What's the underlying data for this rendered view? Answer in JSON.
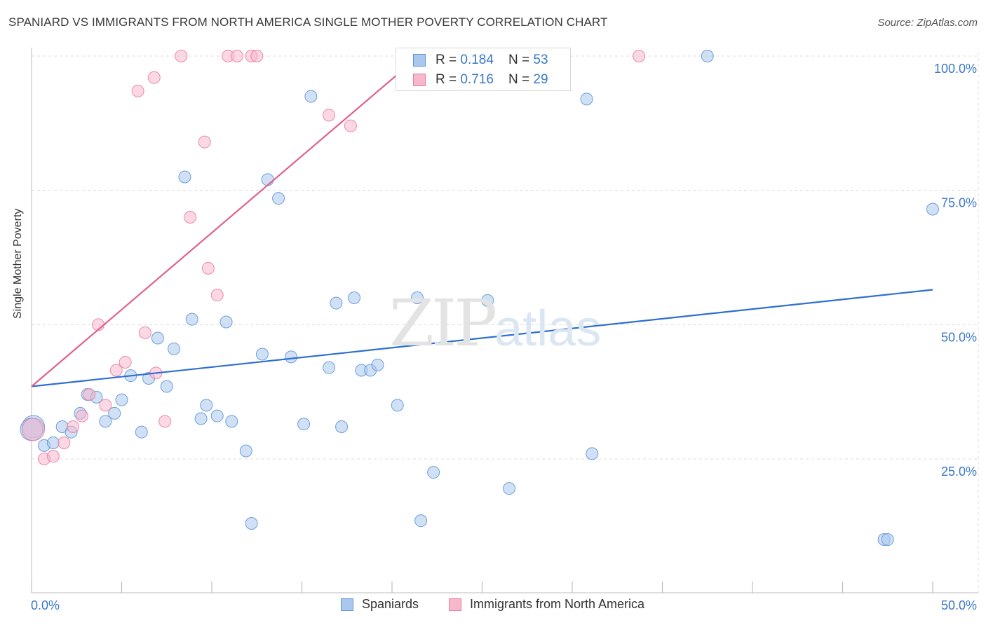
{
  "header": {
    "title": "SPANIARD VS IMMIGRANTS FROM NORTH AMERICA SINGLE MOTHER POVERTY CORRELATION CHART",
    "source": "Source: ZipAtlas.com"
  },
  "watermark": {
    "zip": "ZIP",
    "atlas": "atlas"
  },
  "legend_top": {
    "rows": [
      {
        "r_label": "R = ",
        "r_value": "0.184",
        "n_label": "N = ",
        "n_value": "53"
      },
      {
        "r_label": "R = ",
        "r_value": "0.716",
        "n_label": "N = ",
        "n_value": "29"
      }
    ]
  },
  "legend_bottom": {
    "items": [
      "Spaniards",
      "Immigrants from North America"
    ]
  },
  "chart_data": {
    "type": "scatter",
    "ylabel": "Single Mother Poverty",
    "xlabel": "",
    "x_tick_labels": [
      "0.0%",
      "50.0%"
    ],
    "y_tick_labels": [
      "100.0%",
      "75.0%",
      "50.0%",
      "25.0%"
    ],
    "xlim": [
      0,
      50
    ],
    "ylim": [
      0,
      101
    ],
    "y_ticks": [
      25,
      50,
      75,
      100
    ],
    "grid": "horizontal dashed",
    "legend_position": "top-center and bottom",
    "colors": {
      "blue_fill": "#aac8ee",
      "blue_stroke": "#5f95d8",
      "blue_line": "#2f6fd0",
      "pink_fill": "#f7b8cc",
      "pink_stroke": "#e77fa0",
      "pink_line": "#e0628a",
      "tick_text": "#3a78c9"
    },
    "series": [
      {
        "name": "Spaniards",
        "color": "blue",
        "points": [
          [
            0.1,
            31.0
          ],
          [
            0.7,
            27.5
          ],
          [
            1.2,
            28.0
          ],
          [
            1.7,
            31.0
          ],
          [
            2.2,
            30.0
          ],
          [
            2.7,
            33.5
          ],
          [
            3.1,
            37.0
          ],
          [
            3.6,
            36.5
          ],
          [
            4.1,
            32.0
          ],
          [
            4.6,
            33.5
          ],
          [
            5.0,
            36.0
          ],
          [
            5.5,
            40.5
          ],
          [
            6.1,
            30.0
          ],
          [
            6.5,
            40.0
          ],
          [
            7.0,
            47.5
          ],
          [
            7.5,
            38.5
          ],
          [
            7.9,
            45.5
          ],
          [
            8.5,
            77.5
          ],
          [
            8.9,
            51.0
          ],
          [
            9.4,
            32.5
          ],
          [
            9.7,
            35.0
          ],
          [
            10.3,
            33.0
          ],
          [
            10.8,
            50.5
          ],
          [
            11.1,
            32.0
          ],
          [
            11.9,
            26.5
          ],
          [
            12.2,
            13.0
          ],
          [
            12.8,
            44.5
          ],
          [
            13.1,
            77.0
          ],
          [
            13.7,
            73.5
          ],
          [
            14.4,
            44.0
          ],
          [
            15.1,
            31.5
          ],
          [
            15.5,
            92.5
          ],
          [
            16.5,
            42.0
          ],
          [
            16.9,
            54.0
          ],
          [
            17.2,
            31.0
          ],
          [
            17.9,
            55.0
          ],
          [
            18.3,
            41.5
          ],
          [
            18.8,
            41.5
          ],
          [
            19.2,
            42.5
          ],
          [
            20.3,
            35.0
          ],
          [
            21.4,
            55.0
          ],
          [
            21.6,
            13.5
          ],
          [
            22.3,
            22.5
          ],
          [
            23.2,
            100.0
          ],
          [
            25.3,
            54.5
          ],
          [
            26.5,
            19.5
          ],
          [
            30.8,
            92.0
          ],
          [
            31.1,
            26.0
          ],
          [
            37.5,
            100.0
          ],
          [
            47.3,
            10.0
          ],
          [
            47.5,
            10.0
          ],
          [
            50.0,
            71.5
          ],
          [
            0.0,
            30.5
          ]
        ]
      },
      {
        "name": "Immigrants from North America",
        "color": "pink",
        "points": [
          [
            0.1,
            30.5
          ],
          [
            0.7,
            25.0
          ],
          [
            1.2,
            25.5
          ],
          [
            1.8,
            28.0
          ],
          [
            2.3,
            31.0
          ],
          [
            2.8,
            33.0
          ],
          [
            3.2,
            37.0
          ],
          [
            3.7,
            50.0
          ],
          [
            4.1,
            35.0
          ],
          [
            4.7,
            41.5
          ],
          [
            5.2,
            43.0
          ],
          [
            5.9,
            93.5
          ],
          [
            6.3,
            48.5
          ],
          [
            6.8,
            96.0
          ],
          [
            6.9,
            41.0
          ],
          [
            7.4,
            32.0
          ],
          [
            8.3,
            100.0
          ],
          [
            8.8,
            70.0
          ],
          [
            9.6,
            84.0
          ],
          [
            9.8,
            60.5
          ],
          [
            10.3,
            55.5
          ],
          [
            10.9,
            100.0
          ],
          [
            11.4,
            100.0
          ],
          [
            12.2,
            100.0
          ],
          [
            12.5,
            100.0
          ],
          [
            16.5,
            89.0
          ],
          [
            17.7,
            87.0
          ],
          [
            23.5,
            100.0
          ],
          [
            33.7,
            100.0
          ]
        ]
      }
    ],
    "trend_lines": [
      {
        "series": "Spaniards",
        "x": [
          0,
          50
        ],
        "y": [
          38.5,
          56.5
        ]
      },
      {
        "series": "Immigrants from North America",
        "x": [
          0,
          21.5
        ],
        "y": [
          38.5,
          100
        ]
      }
    ]
  }
}
